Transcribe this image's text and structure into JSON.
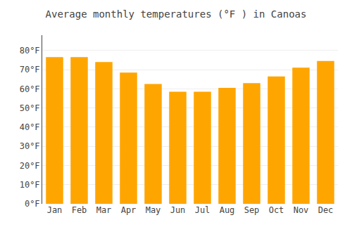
{
  "chart_data": {
    "type": "bar",
    "title": "Average monthly temperatures (°F ) in Canoas",
    "categories": [
      "Jan",
      "Feb",
      "Mar",
      "Apr",
      "May",
      "Jun",
      "Jul",
      "Aug",
      "Sep",
      "Oct",
      "Nov",
      "Dec"
    ],
    "values": [
      76.5,
      76.5,
      74.0,
      68.5,
      62.5,
      58.5,
      58.5,
      60.5,
      63.0,
      66.5,
      71.0,
      74.5
    ],
    "color": "#FFA500",
    "ylim": [
      0,
      88
    ],
    "yticks": [
      {
        "value": 0,
        "label": "0°F"
      },
      {
        "value": 10,
        "label": "10°F"
      },
      {
        "value": 20,
        "label": "20°F"
      },
      {
        "value": 30,
        "label": "30°F"
      },
      {
        "value": 40,
        "label": "40°F"
      },
      {
        "value": 50,
        "label": "50°F"
      },
      {
        "value": 60,
        "label": "60°F"
      },
      {
        "value": 70,
        "label": "70°F"
      },
      {
        "value": 80,
        "label": "80°F"
      }
    ],
    "grid": true
  }
}
